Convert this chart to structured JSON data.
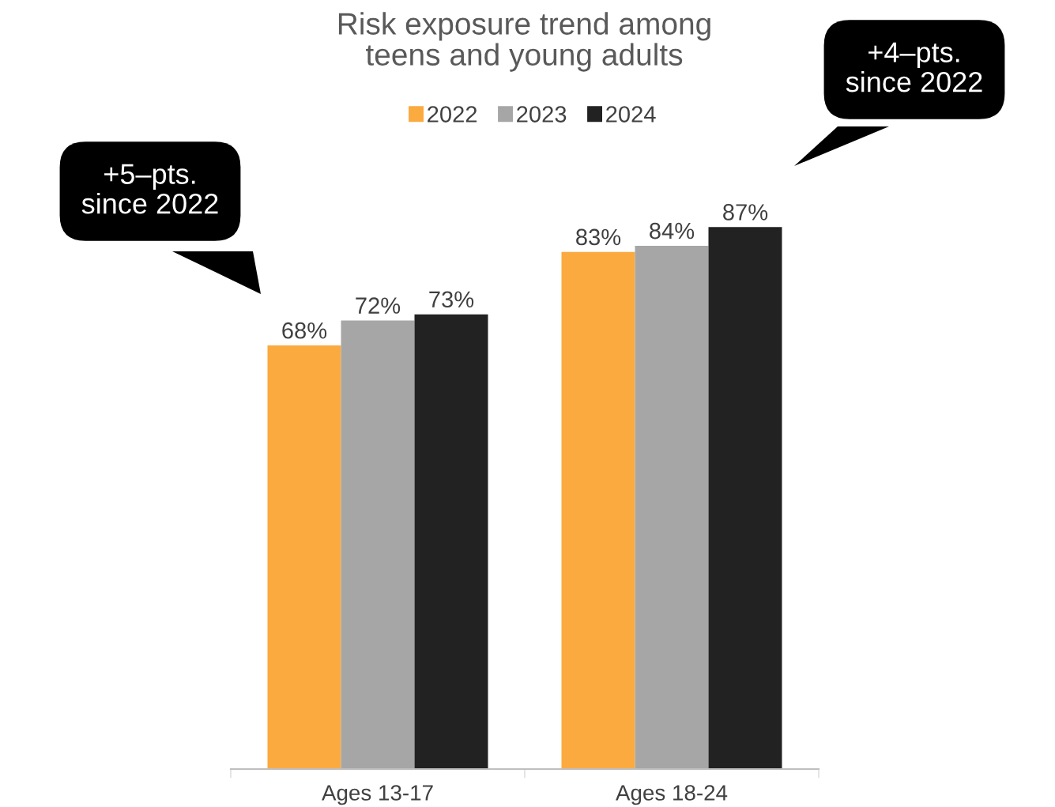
{
  "chart_data": {
    "type": "bar",
    "title": "Risk exposure trend among\nteens and young adults",
    "categories": [
      "Ages 13-17",
      "Ages 18-24"
    ],
    "series": [
      {
        "name": "2022",
        "color": "#fbaa3f",
        "values": [
          68,
          83
        ],
        "value_labels": [
          "68%",
          "83%"
        ]
      },
      {
        "name": "2023",
        "color": "#a6a6a6",
        "values": [
          72,
          84
        ],
        "value_labels": [
          "72%",
          "84%"
        ]
      },
      {
        "name": "2024",
        "color": "#222222",
        "values": [
          73,
          87
        ],
        "value_labels": [
          "73%",
          "87%"
        ]
      }
    ],
    "legend": "top",
    "grid": false,
    "annotations": [
      "+5–pts.\nsince 2022",
      "+4–pts.\nsince 2022"
    ]
  }
}
